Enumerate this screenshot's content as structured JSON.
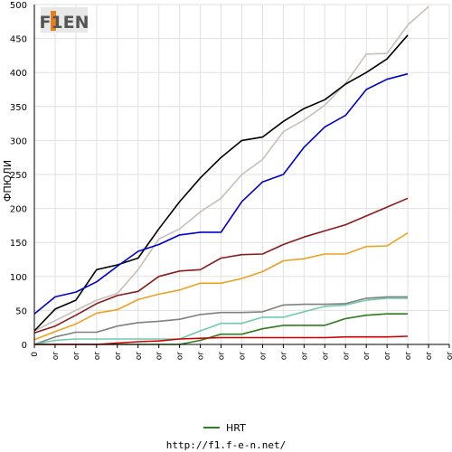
{
  "chart_data": {
    "type": "line",
    "ylabel": "ФПЮЛИ",
    "ylim": [
      0,
      500
    ],
    "y_ticks": [
      0,
      50,
      100,
      150,
      200,
      250,
      300,
      350,
      400,
      450,
      500
    ],
    "x_tick_labels": [
      "0",
      "or",
      "or",
      "or",
      "or",
      "or",
      "or",
      "or",
      "or",
      "or",
      "or",
      "or",
      "or",
      "or",
      "or",
      "or",
      "or",
      "or",
      "or",
      "or",
      "or"
    ],
    "grid": true,
    "legend": [
      {
        "name": "HRT",
        "color": "#2e7d1e"
      }
    ],
    "series": [
      {
        "color": "#c8c0b8",
        "values": [
          20,
          35,
          50,
          65,
          75,
          110,
          155,
          170,
          195,
          215,
          250,
          272,
          313,
          330,
          352,
          384,
          427,
          428,
          470,
          497
        ]
      },
      {
        "color": "#000000",
        "values": [
          20,
          52,
          65,
          110,
          117,
          127,
          170,
          210,
          245,
          275,
          300,
          305,
          328,
          347,
          360,
          383,
          400,
          420,
          455
        ]
      },
      {
        "color": "#0000cc",
        "values": [
          45,
          70,
          77,
          92,
          115,
          137,
          147,
          161,
          165,
          165,
          210,
          239,
          250,
          290,
          320,
          337,
          375,
          390,
          398
        ]
      },
      {
        "color": "#8b1c1c",
        "values": [
          17,
          27,
          43,
          60,
          72,
          78,
          100,
          108,
          110,
          127,
          132,
          133,
          147,
          158,
          167,
          176,
          189,
          202,
          215
        ]
      },
      {
        "color": "#f0a020",
        "values": [
          7,
          19,
          30,
          46,
          51,
          66,
          74,
          80,
          90,
          90,
          97,
          107,
          123,
          126,
          133,
          133,
          144,
          145,
          164
        ]
      },
      {
        "color": "#808080",
        "values": [
          0,
          11,
          18,
          18,
          27,
          32,
          34,
          37,
          44,
          47,
          47,
          48,
          58,
          59,
          59,
          60,
          68,
          70,
          70
        ]
      },
      {
        "color": "#70c8b0",
        "values": [
          0,
          6,
          8,
          8,
          8,
          8,
          8,
          8,
          20,
          31,
          31,
          40,
          40,
          48,
          56,
          58,
          65,
          68,
          68
        ]
      },
      {
        "name": "HRT",
        "color": "#2e7d1e",
        "values": [
          0,
          0,
          0,
          0,
          0,
          0,
          0,
          0,
          6,
          15,
          15,
          23,
          28,
          28,
          28,
          38,
          43,
          45,
          45
        ]
      },
      {
        "color": "#cc0000",
        "values": [
          0,
          0,
          0,
          0,
          2,
          4,
          5,
          8,
          9,
          10,
          10,
          10,
          10,
          10,
          10,
          11,
          11,
          11,
          12
        ]
      }
    ]
  },
  "logo": {
    "text": "F1EN"
  },
  "footer": {
    "url": "http://f1.f-e-n.net/"
  }
}
